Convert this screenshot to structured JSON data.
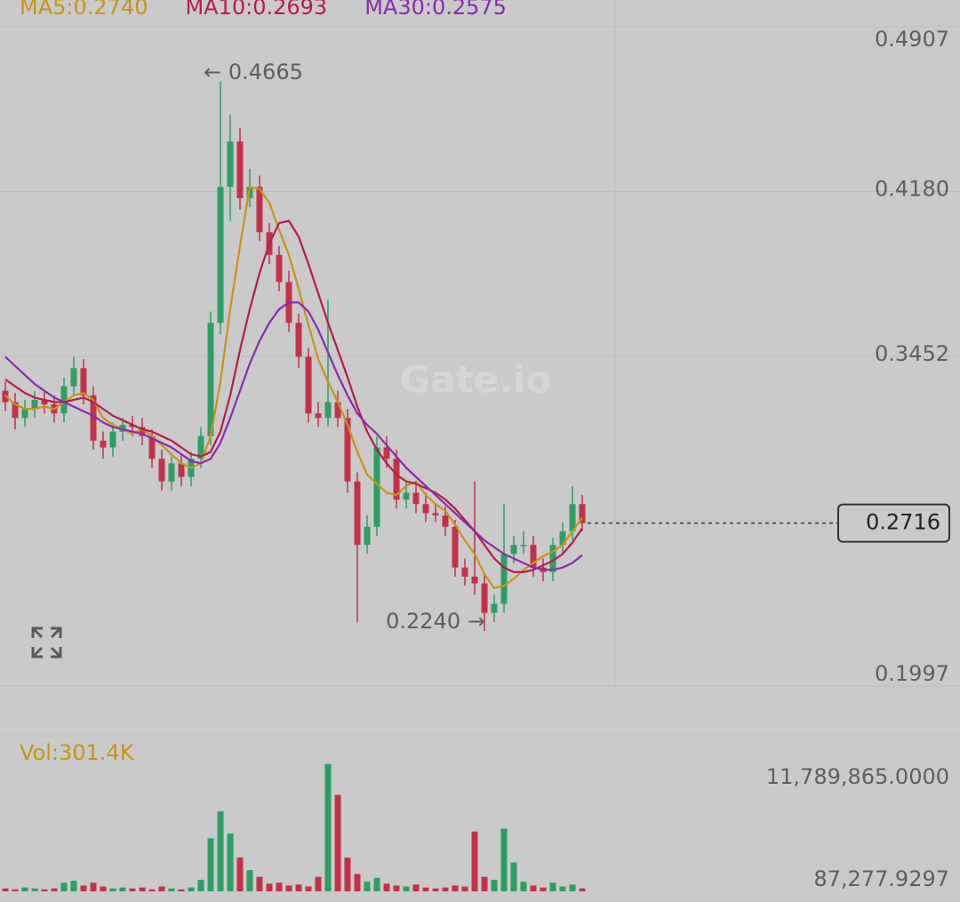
{
  "chart_data": {
    "type": "candlestick",
    "ma_labels": [
      {
        "text": "MA5:0.2740",
        "color": "#c99416"
      },
      {
        "text": "MA10:0.2693",
        "color": "#b51c4f"
      },
      {
        "text": "MA30:0.2575",
        "color": "#8a2bb0"
      }
    ],
    "watermark": "Gate.io",
    "ylim": [
      0.1997,
      0.4907
    ],
    "yticks": [
      0.4907,
      {
        "value": 0.418,
        "label": "0.4180"
      },
      0.3452,
      0.1997
    ],
    "grid": true,
    "up_color": "#2e9e64",
    "down_color": "#c23149",
    "candles": {
      "open": [
        0.33,
        0.325,
        0.318,
        0.322,
        0.326,
        0.324,
        0.32,
        0.332,
        0.34,
        0.328,
        0.308,
        0.305,
        0.312,
        0.315,
        0.314,
        0.31,
        0.3,
        0.29,
        0.298,
        0.292,
        0.3,
        0.31,
        0.36,
        0.42,
        0.44,
        0.415,
        0.42,
        0.4,
        0.39,
        0.378,
        0.36,
        0.345,
        0.32,
        0.318,
        0.325,
        0.318,
        0.29,
        0.262,
        0.27,
        0.305,
        0.3,
        0.282,
        0.285,
        0.28,
        0.276,
        0.275,
        0.27,
        0.252,
        0.248,
        0.245,
        0.232,
        0.236,
        0.258,
        0.262,
        0.262,
        0.252,
        0.25,
        0.262,
        0.268,
        0.28
      ],
      "high": [
        0.334,
        0.329,
        0.326,
        0.33,
        0.33,
        0.328,
        0.336,
        0.345,
        0.344,
        0.332,
        0.312,
        0.316,
        0.318,
        0.319,
        0.318,
        0.313,
        0.304,
        0.301,
        0.302,
        0.303,
        0.314,
        0.365,
        0.4665,
        0.452,
        0.446,
        0.428,
        0.425,
        0.404,
        0.394,
        0.383,
        0.364,
        0.349,
        0.325,
        0.37,
        0.33,
        0.322,
        0.294,
        0.275,
        0.31,
        0.31,
        0.304,
        0.29,
        0.289,
        0.285,
        0.28,
        0.279,
        0.273,
        0.256,
        0.29,
        0.249,
        0.24,
        0.28,
        0.266,
        0.268,
        0.266,
        0.256,
        0.265,
        0.272,
        0.288,
        0.284
      ],
      "low": [
        0.321,
        0.313,
        0.314,
        0.318,
        0.32,
        0.316,
        0.316,
        0.328,
        0.324,
        0.304,
        0.3,
        0.301,
        0.308,
        0.31,
        0.306,
        0.296,
        0.286,
        0.286,
        0.288,
        0.288,
        0.296,
        0.306,
        0.355,
        0.405,
        0.41,
        0.411,
        0.396,
        0.386,
        0.374,
        0.356,
        0.34,
        0.316,
        0.314,
        0.314,
        0.314,
        0.285,
        0.228,
        0.258,
        0.266,
        0.296,
        0.278,
        0.278,
        0.276,
        0.272,
        0.272,
        0.266,
        0.248,
        0.244,
        0.24,
        0.224,
        0.228,
        0.232,
        0.254,
        0.258,
        0.248,
        0.246,
        0.246,
        0.258,
        0.264,
        0.268
      ],
      "close": [
        0.325,
        0.318,
        0.322,
        0.326,
        0.324,
        0.32,
        0.332,
        0.34,
        0.328,
        0.308,
        0.305,
        0.312,
        0.315,
        0.314,
        0.31,
        0.3,
        0.29,
        0.298,
        0.292,
        0.3,
        0.31,
        0.36,
        0.42,
        0.44,
        0.415,
        0.42,
        0.4,
        0.39,
        0.378,
        0.36,
        0.345,
        0.32,
        0.318,
        0.325,
        0.318,
        0.29,
        0.262,
        0.27,
        0.305,
        0.3,
        0.282,
        0.285,
        0.28,
        0.276,
        0.275,
        0.27,
        0.252,
        0.248,
        0.245,
        0.232,
        0.236,
        0.258,
        0.262,
        0.262,
        0.252,
        0.25,
        0.262,
        0.268,
        0.28,
        0.2716
      ]
    },
    "series": [
      {
        "name": "MA5",
        "color": "#c99416",
        "values": [
          0.328,
          0.324,
          0.322,
          0.322,
          0.323,
          0.322,
          0.325,
          0.328,
          0.329,
          0.326,
          0.318,
          0.315,
          0.313,
          0.311,
          0.313,
          0.31,
          0.306,
          0.302,
          0.298,
          0.296,
          0.298,
          0.31,
          0.334,
          0.366,
          0.394,
          0.42,
          0.419,
          0.413,
          0.401,
          0.39,
          0.375,
          0.359,
          0.344,
          0.334,
          0.325,
          0.315,
          0.303,
          0.293,
          0.289,
          0.285,
          0.284,
          0.288,
          0.29,
          0.284,
          0.28,
          0.277,
          0.271,
          0.264,
          0.258,
          0.249,
          0.243,
          0.244,
          0.247,
          0.251,
          0.254,
          0.257,
          0.259,
          0.262,
          0.268,
          0.274
        ]
      },
      {
        "name": "MA10",
        "color": "#b51c4f",
        "values": [
          0.335,
          0.332,
          0.329,
          0.327,
          0.326,
          0.325,
          0.325,
          0.326,
          0.327,
          0.325,
          0.322,
          0.319,
          0.317,
          0.315,
          0.313,
          0.312,
          0.31,
          0.308,
          0.305,
          0.302,
          0.301,
          0.303,
          0.312,
          0.328,
          0.348,
          0.366,
          0.382,
          0.395,
          0.404,
          0.405,
          0.398,
          0.386,
          0.373,
          0.36,
          0.348,
          0.336,
          0.323,
          0.312,
          0.304,
          0.298,
          0.293,
          0.29,
          0.289,
          0.287,
          0.285,
          0.282,
          0.278,
          0.273,
          0.268,
          0.262,
          0.256,
          0.252,
          0.25,
          0.25,
          0.251,
          0.253,
          0.255,
          0.258,
          0.263,
          0.2693
        ]
      },
      {
        "name": "MA30",
        "color": "#8a2bb0",
        "values": [
          0.345,
          0.341,
          0.337,
          0.333,
          0.33,
          0.327,
          0.325,
          0.323,
          0.321,
          0.319,
          0.316,
          0.314,
          0.313,
          0.312,
          0.311,
          0.309,
          0.307,
          0.305,
          0.302,
          0.299,
          0.298,
          0.3,
          0.307,
          0.318,
          0.33,
          0.342,
          0.352,
          0.36,
          0.366,
          0.369,
          0.369,
          0.365,
          0.357,
          0.347,
          0.337,
          0.328,
          0.32,
          0.315,
          0.311,
          0.306,
          0.301,
          0.296,
          0.292,
          0.288,
          0.284,
          0.28,
          0.276,
          0.272,
          0.268,
          0.264,
          0.261,
          0.258,
          0.256,
          0.254,
          0.252,
          0.251,
          0.251,
          0.252,
          0.254,
          0.2575
        ]
      }
    ],
    "last_price": 0.2716,
    "annotations": [
      "← 0.4665",
      "0.2240 →"
    ],
    "volume_label": "Vol:301.4K",
    "volume": [
      300000,
      200000,
      400000,
      300000,
      200000,
      300000,
      900000,
      1100000,
      600000,
      900000,
      500000,
      300000,
      400000,
      300000,
      400000,
      200000,
      500000,
      300000,
      200000,
      400000,
      1200000,
      5500000,
      8300000,
      6000000,
      3500000,
      2200000,
      1500000,
      800000,
      900000,
      600000,
      700000,
      500000,
      1500000,
      13200000,
      10000000,
      3500000,
      1800000,
      1000000,
      1400000,
      800000,
      600000,
      500000,
      700000,
      400000,
      300000,
      400000,
      600000,
      500000,
      6200000,
      1500000,
      1200000,
      6500000,
      3000000,
      1000000,
      600000,
      400000,
      900000,
      500000,
      700000,
      301400
    ],
    "vol_ylim": [
      0,
      11789865
    ],
    "vol_yticks": [
      {
        "value": 11789865,
        "label": "11,789,865.0000"
      },
      {
        "value": 87277.9297,
        "label": "87,277.9297"
      }
    ]
  }
}
